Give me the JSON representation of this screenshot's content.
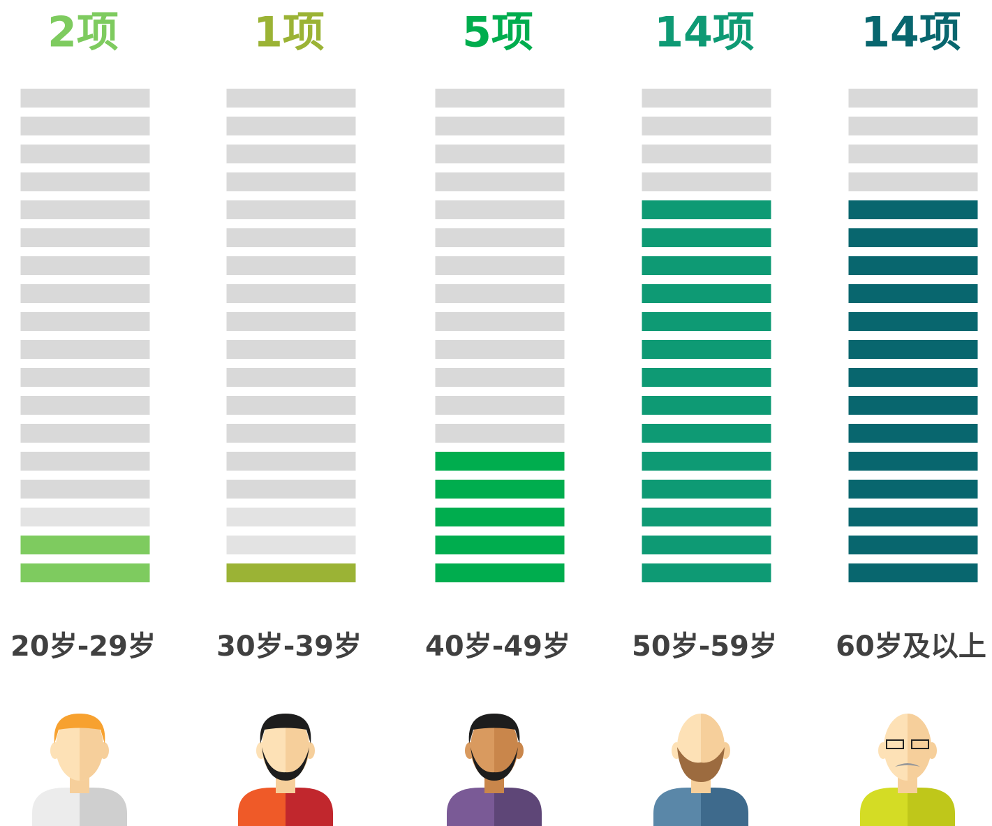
{
  "chart_data": {
    "type": "unit-bar",
    "categories": [
      "20岁-29岁",
      "30岁-39岁",
      "40岁-49岁",
      "50岁-59岁",
      "60岁及以上"
    ],
    "values": [
      2,
      1,
      5,
      14,
      14
    ],
    "value_labels": [
      "2项",
      "1项",
      "5项",
      "14项",
      "14项"
    ],
    "colors": [
      "#7ecb5f",
      "#9bb335",
      "#00ad4e",
      "#0e9a74",
      "#08666e"
    ],
    "ylim": [
      0,
      18
    ]
  }
}
